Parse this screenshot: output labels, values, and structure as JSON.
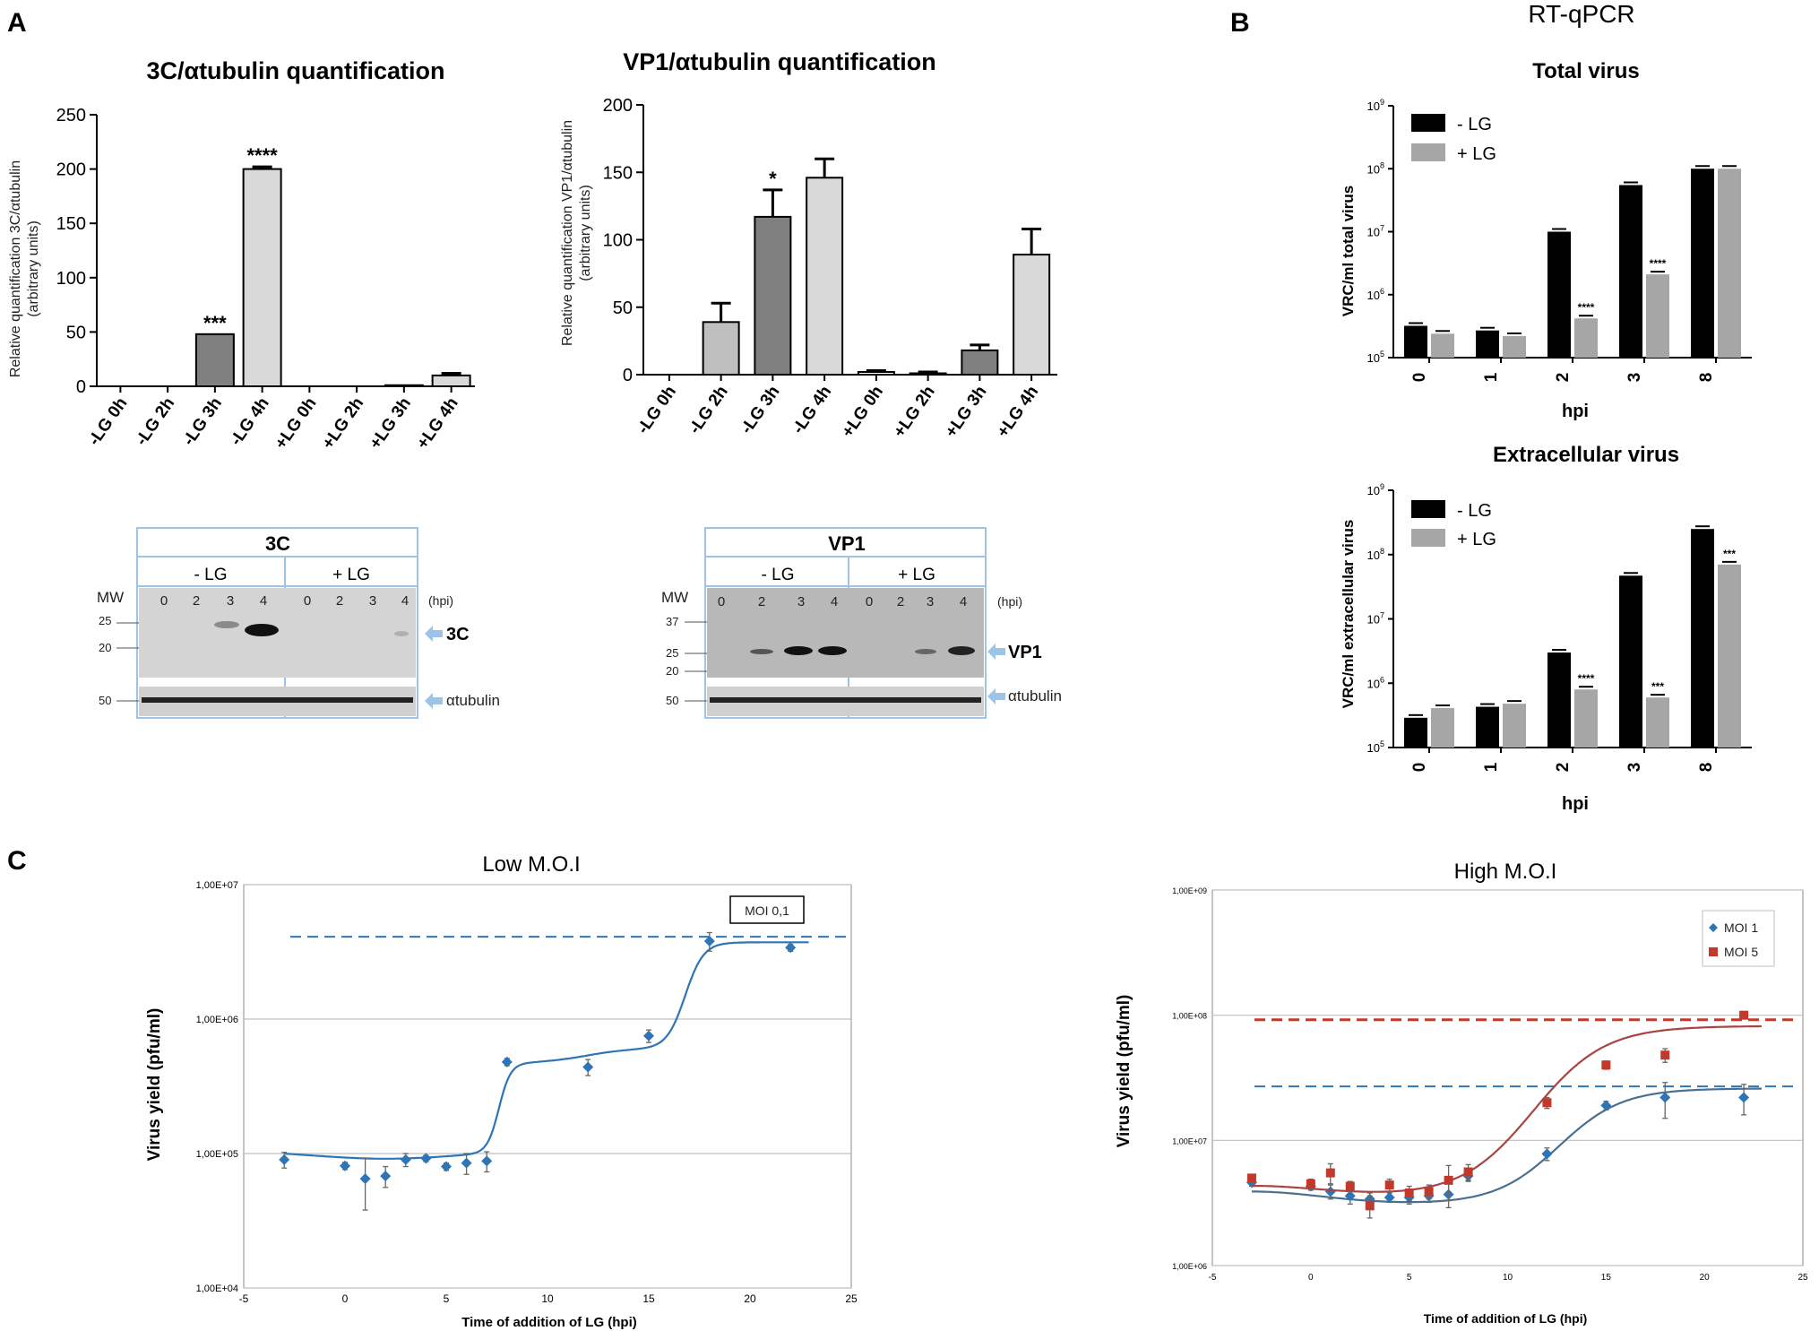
{
  "panels": {
    "a": "A",
    "b": "B",
    "c": "C"
  },
  "blots": [
    {
      "id": "3C",
      "title": "3C",
      "groups": [
        "- LG",
        "+ LG"
      ],
      "mw_label": "MW",
      "mw_markers": [
        "25",
        "20"
      ],
      "loading_marker": "50",
      "lanes": [
        "0",
        "2",
        "3",
        "4",
        "0",
        "2",
        "3",
        "4"
      ],
      "hpi_label": "(hpi)",
      "target_label": "3C",
      "loading_label": "αtubulin"
    },
    {
      "id": "VP1",
      "title": "VP1",
      "groups": [
        "- LG",
        "+ LG"
      ],
      "mw_label": "MW",
      "mw_markers": [
        "37",
        "25",
        "20"
      ],
      "loading_marker": "50",
      "lanes": [
        "0",
        "2",
        "3",
        "4",
        "0",
        "2",
        "3",
        "4"
      ],
      "hpi_label": "(hpi)",
      "target_label": "VP1",
      "loading_label": "αtubulin"
    }
  ],
  "section_b_title": "RT-qPCR",
  "chart_data": [
    {
      "id": "a1",
      "type": "bar",
      "title": "3C/αtubulin quantification",
      "ylabel_lines": [
        "Relative quantification 3C/αtubulin",
        "(arbitrary units)"
      ],
      "categories": [
        "-LG 0h",
        "-LG 2h",
        "-LG 3h",
        "-LG 4h",
        "+LG 0h",
        "+LG 2h",
        "+LG 3h",
        "+LG 4h"
      ],
      "values": [
        0,
        0,
        48,
        200,
        0,
        0,
        1,
        10
      ],
      "errors": [
        0,
        0,
        0,
        2,
        0,
        0,
        0,
        2
      ],
      "colors": [
        "#ffffff",
        "#ffffff",
        "#808080",
        "#d9d9d9",
        "#ffffff",
        "#ffffff",
        "#808080",
        "#d9d9d9"
      ],
      "significance": [
        "",
        "",
        "***",
        "****",
        "",
        "",
        "",
        ""
      ],
      "ylim": [
        0,
        250
      ],
      "yticks": [
        0,
        50,
        100,
        150,
        200,
        250
      ]
    },
    {
      "id": "a2",
      "type": "bar",
      "title": "VP1/αtubulin quantification",
      "ylabel_lines": [
        "Relative quantification VP1/αtubulin",
        "(arbitrary units)"
      ],
      "categories": [
        "-LG 0h",
        "-LG 2h",
        "-LG 3h",
        "-LG 4h",
        "+LG 0h",
        "+LG 2h",
        "+LG 3h",
        "+LG 4h"
      ],
      "values": [
        0,
        39,
        117,
        146,
        2,
        1,
        18,
        89
      ],
      "errors": [
        0,
        14,
        20,
        14,
        1,
        1,
        4,
        19
      ],
      "colors": [
        "#ffffff",
        "#bfbfbf",
        "#808080",
        "#d9d9d9",
        "#ffffff",
        "#bfbfbf",
        "#808080",
        "#d9d9d9"
      ],
      "significance": [
        "",
        "",
        "*",
        "",
        "",
        "",
        "",
        ""
      ],
      "ylim": [
        0,
        200
      ],
      "yticks": [
        0,
        50,
        100,
        150,
        200
      ]
    },
    {
      "id": "b1",
      "type": "bar",
      "title": "Total virus",
      "ylabel": "VRC/ml total virus",
      "xlabel": "hpi",
      "log_scale": true,
      "ylim_exp": [
        5,
        9
      ],
      "ytick_exps": [
        "5",
        "6",
        "7",
        "8",
        "9"
      ],
      "categories": [
        "0",
        "1",
        "2",
        "3",
        "8"
      ],
      "series": [
        {
          "name": "- LG",
          "color": "#000000",
          "values": [
            320000,
            270000,
            10000000,
            55000000,
            100000000
          ]
        },
        {
          "name": "+ LG",
          "color": "#a6a6a6",
          "values": [
            240000,
            220000,
            420000,
            2100000,
            100000000
          ]
        }
      ],
      "significance": [
        "",
        "",
        "****",
        "****",
        ""
      ]
    },
    {
      "id": "b2",
      "type": "bar",
      "title": "Extracellular virus",
      "ylabel": "VRC/ml extracellular virus",
      "xlabel": "hpi",
      "log_scale": true,
      "ylim_exp": [
        5,
        9
      ],
      "ytick_exps": [
        "5",
        "6",
        "7",
        "8",
        "9"
      ],
      "categories": [
        "0",
        "1",
        "2",
        "3",
        "8"
      ],
      "series": [
        {
          "name": "- LG",
          "color": "#000000",
          "values": [
            290000,
            430000,
            3000000,
            47000000,
            250000000
          ]
        },
        {
          "name": "+ LG",
          "color": "#a6a6a6",
          "values": [
            410000,
            480000,
            800000,
            600000,
            70000000
          ]
        }
      ],
      "significance": [
        "",
        "",
        "****",
        "***",
        "***"
      ]
    },
    {
      "id": "c1",
      "type": "scatter",
      "title": "Low M.O.I",
      "xlabel": "Time of addition of LG (hpi)",
      "ylabel": "Virus yield (pfu/ml)",
      "xlim": [
        -5,
        25
      ],
      "xticks": [
        "-5",
        "0",
        "5",
        "10",
        "15",
        "20",
        "25"
      ],
      "ytick_labels": [
        "1,00E+04",
        "1,00E+05",
        "1,00E+06",
        "1,00E+07"
      ],
      "ylim_exp": [
        4,
        7
      ],
      "legend": "MOI 0,1",
      "reference_line": 4100000,
      "series": [
        {
          "name": "MOI 0,1",
          "color": "#2e75b6",
          "x": [
            -3,
            0,
            1,
            2,
            3,
            4,
            5,
            6,
            7,
            8,
            12,
            15,
            18,
            22
          ],
          "y": [
            90000,
            81000,
            65000,
            68000,
            90000,
            92000,
            80000,
            85000,
            88000,
            480000,
            440000,
            750000,
            3800000,
            3400000
          ],
          "err": [
            12000,
            5000,
            27000,
            12000,
            10000,
            5000,
            5000,
            15000,
            15000,
            30000,
            60000,
            80000,
            600000,
            200000
          ]
        }
      ]
    },
    {
      "id": "c2",
      "type": "scatter",
      "title": "High M.O.I",
      "xlabel": "Time of addition of LG (hpi)",
      "ylabel": "Virus yield (pfu/ml)",
      "xlim": [
        -5,
        25
      ],
      "xticks": [
        "-5",
        "0",
        "5",
        "10",
        "15",
        "20",
        "25"
      ],
      "ytick_labels": [
        "1,00E+06",
        "1,00E+07",
        "1,00E+08",
        "1,00E+09"
      ],
      "ylim_exp": [
        6,
        9
      ],
      "series": [
        {
          "name": "MOI 1",
          "color": "#2e75b6",
          "reference_line": 27000000,
          "x": [
            -3,
            0,
            1,
            2,
            3,
            4,
            5,
            6,
            7,
            8,
            12,
            15,
            18,
            22
          ],
          "y": [
            4600000,
            4300000,
            3900000,
            3600000,
            3400000,
            3500000,
            3500000,
            3600000,
            3700000,
            5200000,
            7800000,
            19000000,
            22000000,
            22000000
          ],
          "err": [
            300000,
            300000,
            500000,
            500000,
            400000,
            300000,
            400000,
            400000,
            800000,
            500000,
            900000,
            1500000,
            7000000,
            6000000
          ]
        },
        {
          "name": "MOI 5",
          "color": "#c0392b",
          "reference_line": 92000000,
          "x": [
            -3,
            0,
            1,
            2,
            3,
            4,
            5,
            6,
            7,
            8,
            12,
            15,
            18,
            22
          ],
          "y": [
            5000000,
            4500000,
            5500000,
            4300000,
            3000000,
            4400000,
            3800000,
            3900000,
            4800000,
            5600000,
            20000000,
            40000000,
            48000000,
            100000000
          ],
          "err": [
            300000,
            400000,
            1000000,
            400000,
            600000,
            500000,
            500000,
            500000,
            1500000,
            800000,
            2000000,
            3000000,
            6000000,
            5000000
          ]
        }
      ]
    }
  ]
}
